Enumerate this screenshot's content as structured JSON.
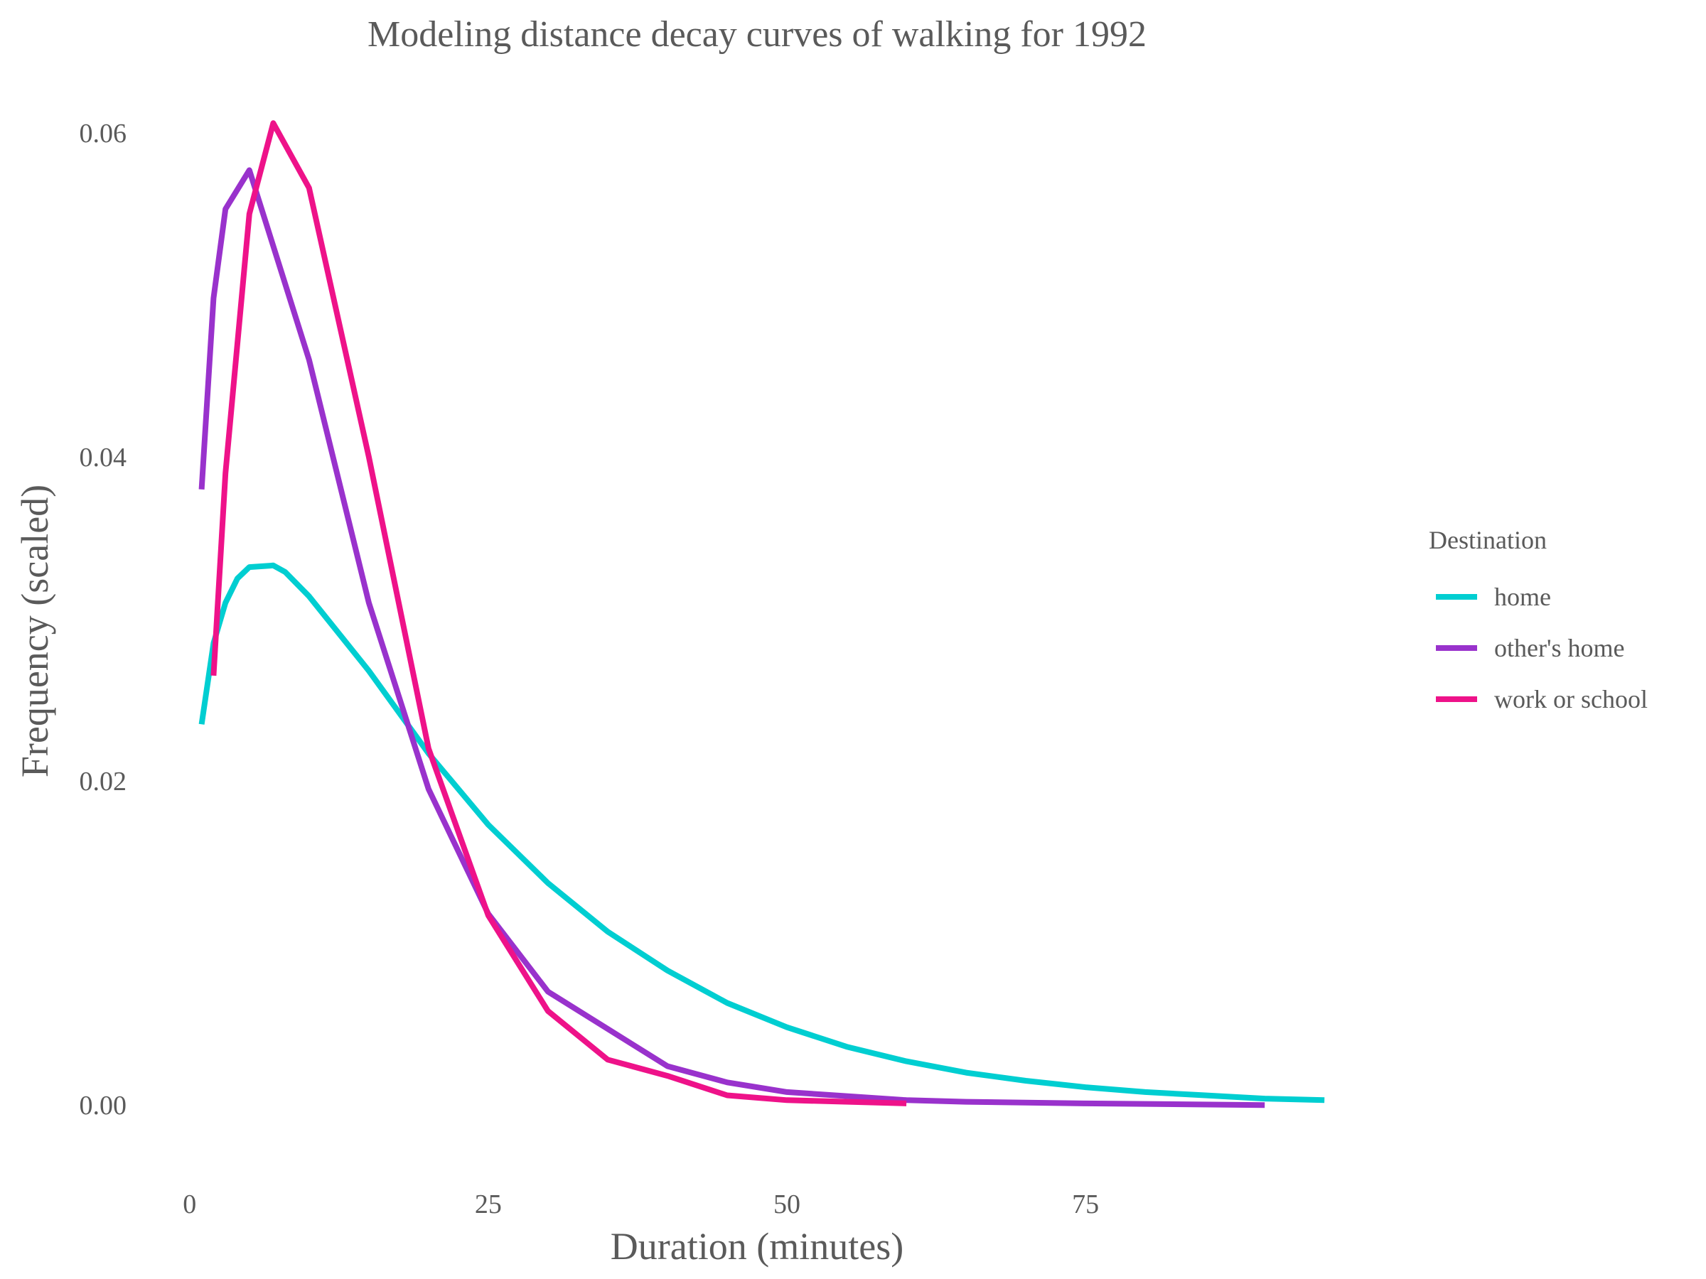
{
  "chart_data": {
    "type": "line",
    "title": "Modeling distance decay curves of walking for 1992",
    "xlabel": "Duration (minutes)",
    "ylabel": "Frequency (scaled)",
    "xlim": [
      -1,
      96
    ],
    "ylim": [
      -0.0035,
      0.0625
    ],
    "x_ticks": [
      0,
      25,
      50,
      75
    ],
    "x_tick_labels": [
      "0",
      "25",
      "50",
      "75"
    ],
    "y_ticks": [
      0,
      0.02,
      0.04,
      0.06
    ],
    "y_tick_labels": [
      "0.00",
      "0.02",
      "0.04",
      "0.06"
    ],
    "grid": false,
    "legend": {
      "title": "Destination",
      "position": "right"
    },
    "series": [
      {
        "name": "home",
        "color": "#00CED1",
        "points": [
          [
            1,
            0.0235
          ],
          [
            2,
            0.0285
          ],
          [
            3,
            0.031
          ],
          [
            4,
            0.0325
          ],
          [
            5,
            0.0332
          ],
          [
            7,
            0.0333
          ],
          [
            8,
            0.0329
          ],
          [
            10,
            0.0314
          ],
          [
            15,
            0.0268
          ],
          [
            20,
            0.0217
          ],
          [
            25,
            0.0173
          ],
          [
            30,
            0.0137
          ],
          [
            35,
            0.0107
          ],
          [
            40,
            0.0083
          ],
          [
            45,
            0.0063
          ],
          [
            50,
            0.0048
          ],
          [
            55,
            0.0036
          ],
          [
            60,
            0.0027
          ],
          [
            65,
            0.002
          ],
          [
            70,
            0.0015
          ],
          [
            75,
            0.0011
          ],
          [
            80,
            0.0008
          ],
          [
            85,
            0.0006
          ],
          [
            90,
            0.0004
          ],
          [
            95,
            0.0003
          ]
        ]
      },
      {
        "name": "other's home",
        "color": "#9932CC",
        "points": [
          [
            1,
            0.038
          ],
          [
            2,
            0.0498
          ],
          [
            3,
            0.0553
          ],
          [
            5,
            0.0577
          ],
          [
            10,
            0.046
          ],
          [
            15,
            0.031
          ],
          [
            20,
            0.0195
          ],
          [
            25,
            0.0118
          ],
          [
            30,
            0.007
          ],
          [
            35,
            0.0047
          ],
          [
            40,
            0.0024
          ],
          [
            45,
            0.0014
          ],
          [
            50,
            0.0008
          ],
          [
            60,
            0.0003
          ],
          [
            65,
            0.0002
          ],
          [
            75,
            0.0001
          ],
          [
            90,
            0.0
          ]
        ]
      },
      {
        "name": "work or school",
        "color": "#EE1289",
        "points": [
          [
            2,
            0.0265
          ],
          [
            3,
            0.039
          ],
          [
            5,
            0.055
          ],
          [
            7,
            0.0606
          ],
          [
            10,
            0.0566
          ],
          [
            15,
            0.04
          ],
          [
            20,
            0.022
          ],
          [
            25,
            0.0117
          ],
          [
            30,
            0.0058
          ],
          [
            35,
            0.0028
          ],
          [
            40,
            0.0018
          ],
          [
            45,
            0.0006
          ],
          [
            50,
            0.0003
          ],
          [
            60,
            0.0001
          ]
        ]
      }
    ]
  }
}
